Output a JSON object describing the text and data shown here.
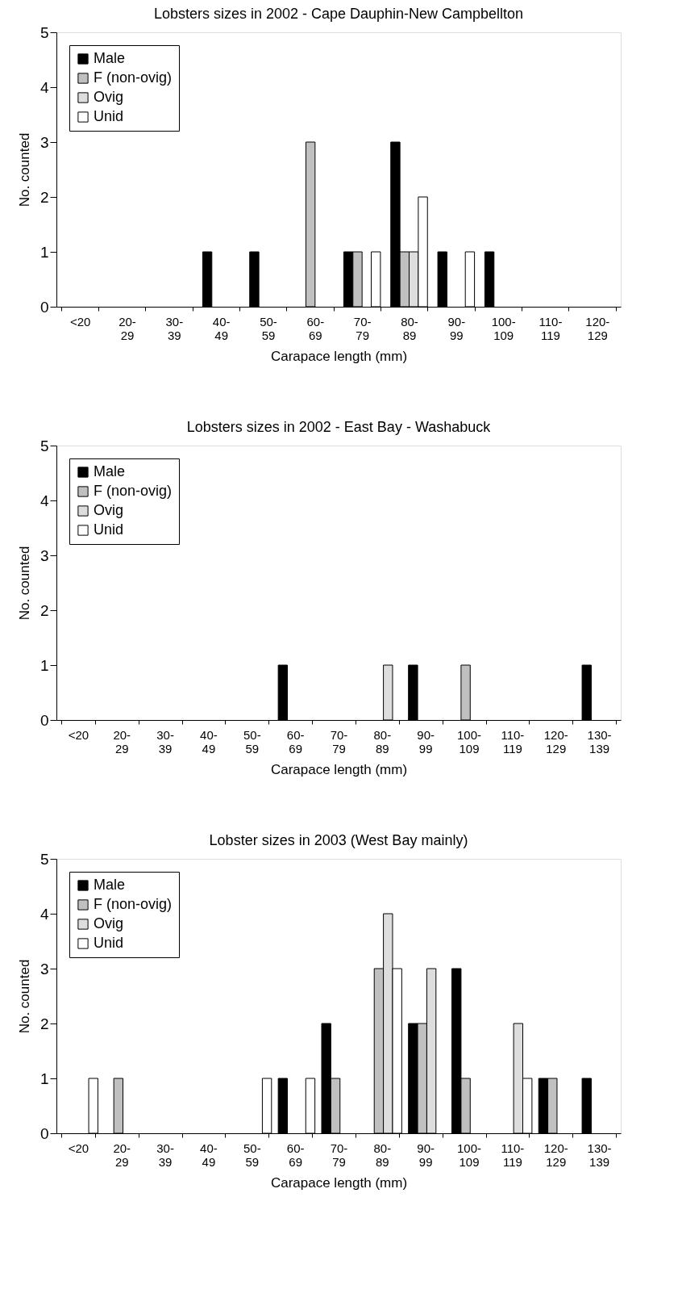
{
  "chart_data": [
    {
      "type": "bar",
      "title": "Lobsters sizes in 2002 - Cape Dauphin-New Campbellton",
      "xlabel": "Carapace length (mm)",
      "ylabel": "No. counted",
      "categories": [
        "<20",
        "20-29",
        "30-39",
        "40-49",
        "50-59",
        "60-69",
        "70-79",
        "80-89",
        "90-99",
        "100-109",
        "110-119",
        "120-129"
      ],
      "series": [
        {
          "name": "Male",
          "color": "#000000",
          "values": [
            0,
            0,
            0,
            1,
            1,
            0,
            1,
            3,
            1,
            1,
            0,
            0
          ]
        },
        {
          "name": "F (non-ovig)",
          "color": "#c0c0c0",
          "values": [
            0,
            0,
            0,
            0,
            0,
            3,
            1,
            1,
            0,
            0,
            0,
            0
          ]
        },
        {
          "name": "Ovig",
          "color": "#dddddd",
          "values": [
            0,
            0,
            0,
            0,
            0,
            0,
            0,
            1,
            0,
            0,
            0,
            0
          ]
        },
        {
          "name": "Unid",
          "color": "#ffffff",
          "values": [
            0,
            0,
            0,
            0,
            0,
            0,
            1,
            2,
            1,
            0,
            0,
            0
          ]
        }
      ],
      "ylim": [
        0,
        5
      ],
      "yticks": [
        0,
        1,
        2,
        3,
        4,
        5
      ],
      "legend": "top left",
      "grid": false
    },
    {
      "type": "bar",
      "title": "Lobsters sizes in 2002 - East Bay - Washabuck",
      "xlabel": "Carapace length (mm)",
      "ylabel": "No. counted",
      "categories": [
        "<20",
        "20-29",
        "30-39",
        "40-49",
        "50-59",
        "60-69",
        "70-79",
        "80-89",
        "90-99",
        "100-109",
        "110-119",
        "120-129",
        "130-139"
      ],
      "series": [
        {
          "name": "Male",
          "color": "#000000",
          "values": [
            0,
            0,
            0,
            0,
            0,
            1,
            0,
            0,
            1,
            0,
            0,
            0,
            1
          ]
        },
        {
          "name": "F (non-ovig)",
          "color": "#c0c0c0",
          "values": [
            0,
            0,
            0,
            0,
            0,
            0,
            0,
            0,
            0,
            1,
            0,
            0,
            0
          ]
        },
        {
          "name": "Ovig",
          "color": "#dddddd",
          "values": [
            0,
            0,
            0,
            0,
            0,
            0,
            0,
            1,
            0,
            0,
            0,
            0,
            0
          ]
        },
        {
          "name": "Unid",
          "color": "#ffffff",
          "values": [
            0,
            0,
            0,
            0,
            0,
            0,
            0,
            0,
            0,
            0,
            0,
            0,
            0
          ]
        }
      ],
      "ylim": [
        0,
        5
      ],
      "yticks": [
        0,
        1,
        2,
        3,
        4,
        5
      ],
      "legend": "top left",
      "grid": false
    },
    {
      "type": "bar",
      "title": "Lobster sizes in 2003 (West Bay mainly)",
      "xlabel": "Carapace length (mm)",
      "ylabel": "No. counted",
      "categories": [
        "<20",
        "20-29",
        "30-39",
        "40-49",
        "50-59",
        "60-69",
        "70-79",
        "80-89",
        "90-99",
        "100-109",
        "110-119",
        "120-129",
        "130-139"
      ],
      "series": [
        {
          "name": "Male",
          "color": "#000000",
          "values": [
            0,
            0,
            0,
            0,
            0,
            1,
            2,
            0,
            2,
            3,
            0,
            1,
            1
          ]
        },
        {
          "name": "F (non-ovig)",
          "color": "#c0c0c0",
          "values": [
            0,
            1,
            0,
            0,
            0,
            0,
            1,
            3,
            2,
            1,
            0,
            1,
            0
          ]
        },
        {
          "name": "Ovig",
          "color": "#dddddd",
          "values": [
            0,
            0,
            0,
            0,
            0,
            0,
            0,
            4,
            3,
            0,
            2,
            0,
            0
          ]
        },
        {
          "name": "Unid",
          "color": "#ffffff",
          "values": [
            1,
            0,
            0,
            0,
            1,
            1,
            0,
            3,
            0,
            0,
            1,
            0,
            0
          ]
        }
      ],
      "ylim": [
        0,
        5
      ],
      "yticks": [
        0,
        1,
        2,
        3,
        4,
        5
      ],
      "legend": "top left",
      "grid": false
    }
  ]
}
